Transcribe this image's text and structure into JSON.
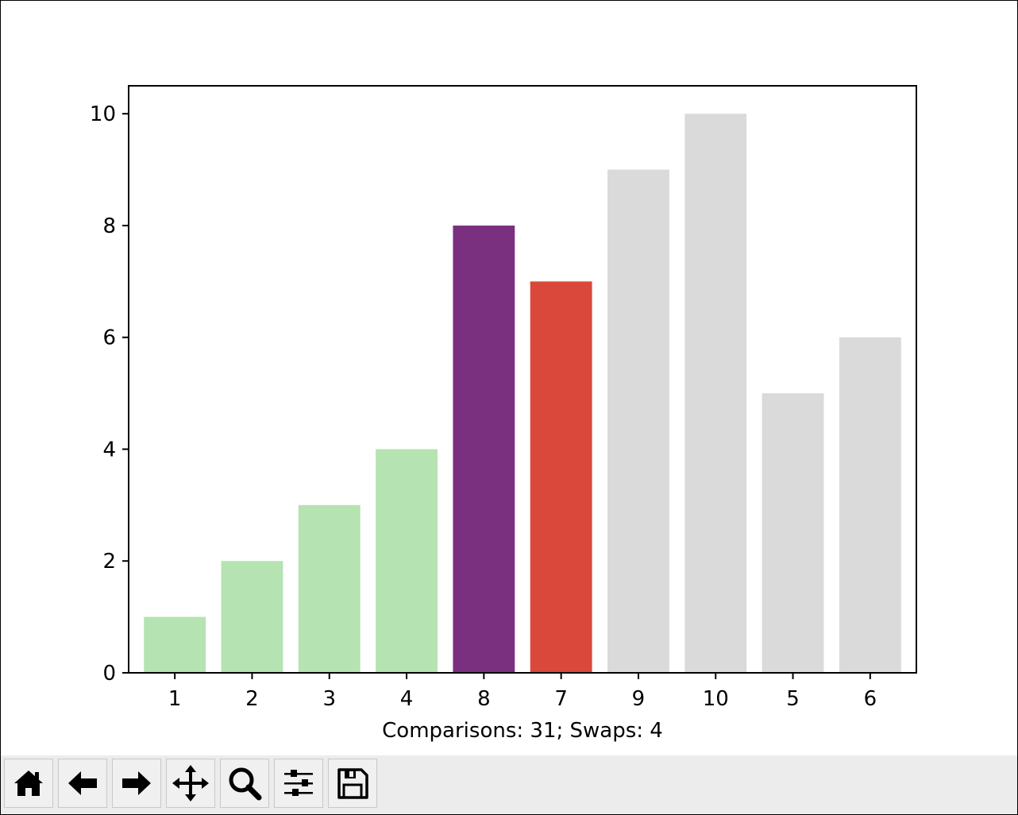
{
  "chart_data": {
    "type": "bar",
    "categories": [
      "1",
      "2",
      "3",
      "4",
      "8",
      "7",
      "9",
      "10",
      "5",
      "6"
    ],
    "values": [
      1,
      2,
      3,
      4,
      8,
      7,
      9,
      10,
      5,
      6
    ],
    "bar_colors": [
      "#b5e3b1",
      "#b5e3b1",
      "#b5e3b1",
      "#b5e3b1",
      "#7a307f",
      "#d9483a",
      "#dadada",
      "#dadada",
      "#dadada",
      "#dadada"
    ],
    "title": "",
    "xlabel": "Comparisons: 31; Swaps: 4",
    "ylabel": "",
    "ylim": [
      0,
      10.5
    ],
    "yticks": [
      0,
      2,
      4,
      6,
      8,
      10
    ],
    "grid": false
  },
  "toolbar": {
    "buttons": [
      {
        "name": "home-button",
        "icon": "home-icon"
      },
      {
        "name": "back-button",
        "icon": "arrow-left-icon"
      },
      {
        "name": "forward-button",
        "icon": "arrow-right-icon"
      },
      {
        "name": "pan-button",
        "icon": "move-icon"
      },
      {
        "name": "zoom-button",
        "icon": "magnifier-icon"
      },
      {
        "name": "configure-subplots-button",
        "icon": "sliders-icon"
      },
      {
        "name": "save-button",
        "icon": "floppy-disk-icon"
      }
    ]
  }
}
